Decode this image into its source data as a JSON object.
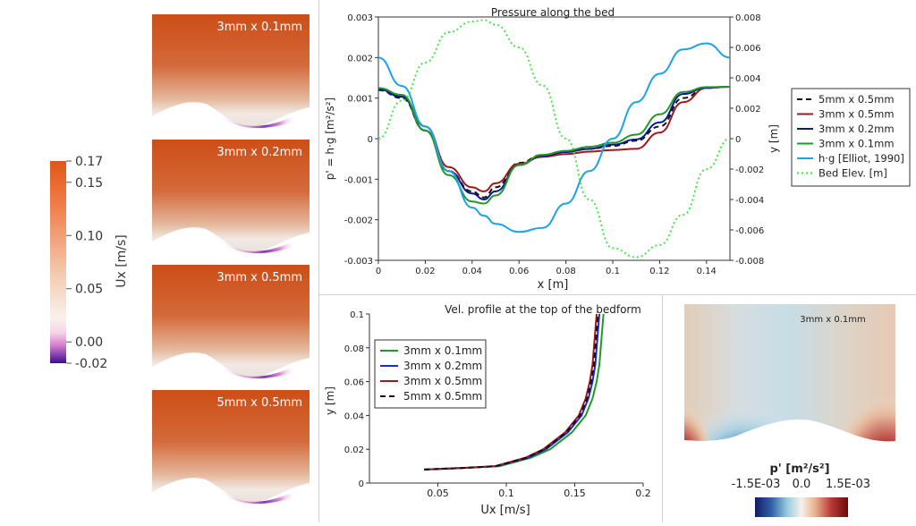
{
  "colorbar_ux": {
    "title": "Ux [m/s]",
    "ticks": [
      {
        "label": "0.17",
        "value": 0.17
      },
      {
        "label": "0.15",
        "value": 0.15
      },
      {
        "label": "0.10",
        "value": 0.1
      },
      {
        "label": "0.05",
        "value": 0.05
      },
      {
        "label": "0.00",
        "value": 0.0
      },
      {
        "label": "-0.02",
        "value": -0.02
      }
    ],
    "range": [
      -0.02,
      0.17
    ],
    "colors": {
      "max": "#d9541a",
      "mid": "#f6efe8",
      "zero": "#f2c0d8",
      "min": "#3d0f8c"
    }
  },
  "velocity_maps": [
    {
      "label": "3mm x 0.1mm"
    },
    {
      "label": "3mm x 0.2mm"
    },
    {
      "label": "3mm x 0.5mm"
    },
    {
      "label": "5mm x 0.5mm"
    }
  ],
  "pressure_map": {
    "label": "3mm x 0.1mm",
    "colorbar_title": "p' [m²/s²]",
    "ticks": [
      "-1.5E-03",
      "0.0",
      "1.5E-03"
    ],
    "colors": {
      "low": "#1a1f6e",
      "mid": "#f4efe6",
      "high": "#7a1010"
    }
  },
  "chart_data": [
    {
      "type": "line",
      "title": "Pressure along the bed",
      "xlabel": "x [m]",
      "ylabel": "p' = h·g  [m²/s²]",
      "ylabel_right": "y [m]",
      "xlim": [
        0,
        0.15
      ],
      "ylim": [
        -0.003,
        0.003
      ],
      "ylim_right": [
        -0.008,
        0.008
      ],
      "x_ticks": [
        "0",
        "0.02",
        "0.04",
        "0.06",
        "0.08",
        "0.1",
        "0.12",
        "0.14"
      ],
      "y_ticks": [
        "-0.003",
        "-0.002",
        "-0.001",
        "0",
        "0.001",
        "0.002",
        "0.003"
      ],
      "y_ticks_right": [
        "-0.008",
        "-0.006",
        "-0.004",
        "-0.002",
        "0",
        "0.002",
        "0.004",
        "0.006",
        "0.008"
      ],
      "grid": false,
      "legend_position": "right",
      "x": [
        0,
        0.01,
        0.02,
        0.03,
        0.04,
        0.045,
        0.05,
        0.06,
        0.07,
        0.08,
        0.09,
        0.1,
        0.11,
        0.12,
        0.13,
        0.14,
        0.15
      ],
      "series": [
        {
          "name": "5mm x 0.5mm",
          "color": "#111111",
          "dash": "6,4",
          "axis": "left",
          "values": [
            0.0012,
            0.001,
            0.0002,
            -0.0008,
            -0.0013,
            -0.00145,
            -0.0012,
            -0.0006,
            -0.0004,
            -0.00032,
            -0.00025,
            -0.00018,
            -5e-05,
            0.0003,
            0.001,
            0.00125,
            0.00128
          ]
        },
        {
          "name": "3mm x 0.5mm",
          "color": "#a01818",
          "dash": "",
          "axis": "left",
          "values": [
            0.00122,
            0.00105,
            0.0003,
            -0.0007,
            -0.0012,
            -0.0013,
            -0.0011,
            -0.00062,
            -0.00045,
            -0.00038,
            -0.00032,
            -0.00028,
            -0.00025,
            0.00015,
            0.0009,
            0.00125,
            0.00128
          ]
        },
        {
          "name": "3mm x 0.2mm",
          "color": "#0a1a8c",
          "dash": "",
          "axis": "left",
          "values": [
            0.00122,
            0.00103,
            0.0002,
            -0.0008,
            -0.00135,
            -0.0015,
            -0.0013,
            -0.00065,
            -0.00042,
            -0.00033,
            -0.00025,
            -0.00015,
            -2e-05,
            0.0004,
            0.0011,
            0.00126,
            0.00128
          ]
        },
        {
          "name": "3mm x 0.1mm",
          "color": "#1f9a2a",
          "dash": "",
          "axis": "left",
          "values": [
            0.00125,
            0.00108,
            0.0002,
            -0.0009,
            -0.00155,
            -0.0016,
            -0.0014,
            -0.00065,
            -0.0004,
            -0.0003,
            -0.0002,
            -0.0001,
            0.0001,
            0.0006,
            0.00115,
            0.00127,
            0.00128
          ]
        },
        {
          "name": "h·g [Elliot, 1990]",
          "color": "#1aa3e6",
          "dash": "",
          "axis": "left",
          "values": [
            0.002,
            0.0013,
            0.0003,
            -0.0008,
            -0.0017,
            -0.0019,
            -0.0021,
            -0.0023,
            -0.0022,
            -0.0016,
            -0.0008,
            0.0,
            0.0009,
            0.0016,
            0.0022,
            0.00235,
            0.002
          ]
        },
        {
          "name": "Bed Elev. [m]",
          "color": "#44e844",
          "dash": "2,3",
          "axis": "right",
          "values": [
            0.0,
            0.0025,
            0.005,
            0.007,
            0.0077,
            0.0078,
            0.0075,
            0.006,
            0.0035,
            0.0,
            -0.004,
            -0.0072,
            -0.0078,
            -0.007,
            -0.005,
            -0.002,
            0.0
          ]
        }
      ]
    },
    {
      "type": "line",
      "title": "Vel. profile at the top of the bedform",
      "xlabel": "Ux [m/s]",
      "ylabel": "y [m]",
      "xlim": [
        0,
        0.2
      ],
      "ylim": [
        0,
        0.1
      ],
      "x_ticks": [
        "0.05",
        "0.1",
        "0.15",
        "0.2"
      ],
      "y_ticks": [
        "0",
        "0.02",
        "0.04",
        "0.06",
        "0.08",
        "0.1"
      ],
      "grid": false,
      "legend_position": "top-left",
      "y": [
        0.008,
        0.009,
        0.01,
        0.015,
        0.02,
        0.03,
        0.04,
        0.05,
        0.06,
        0.07,
        0.08,
        0.09,
        0.1
      ],
      "series": [
        {
          "name": "3mm x 0.1mm",
          "color": "#1f9a2a",
          "dash": "",
          "x": [
            0.04,
            0.07,
            0.095,
            0.118,
            0.132,
            0.148,
            0.158,
            0.163,
            0.166,
            0.168,
            0.169,
            0.17,
            0.171
          ]
        },
        {
          "name": "3mm x 0.2mm",
          "color": "#1a2ad8",
          "dash": "",
          "x": [
            0.04,
            0.07,
            0.093,
            0.116,
            0.129,
            0.145,
            0.155,
            0.16,
            0.163,
            0.165,
            0.166,
            0.167,
            0.168
          ]
        },
        {
          "name": "3mm x 0.5mm",
          "color": "#a01818",
          "dash": "",
          "x": [
            0.04,
            0.07,
            0.092,
            0.114,
            0.127,
            0.143,
            0.153,
            0.158,
            0.161,
            0.163,
            0.164,
            0.165,
            0.166
          ]
        },
        {
          "name": "5mm x 0.5mm",
          "color": "#111111",
          "dash": "6,4",
          "x": [
            0.04,
            0.07,
            0.092,
            0.115,
            0.128,
            0.144,
            0.154,
            0.159,
            0.162,
            0.164,
            0.165,
            0.166,
            0.167
          ]
        }
      ]
    }
  ]
}
